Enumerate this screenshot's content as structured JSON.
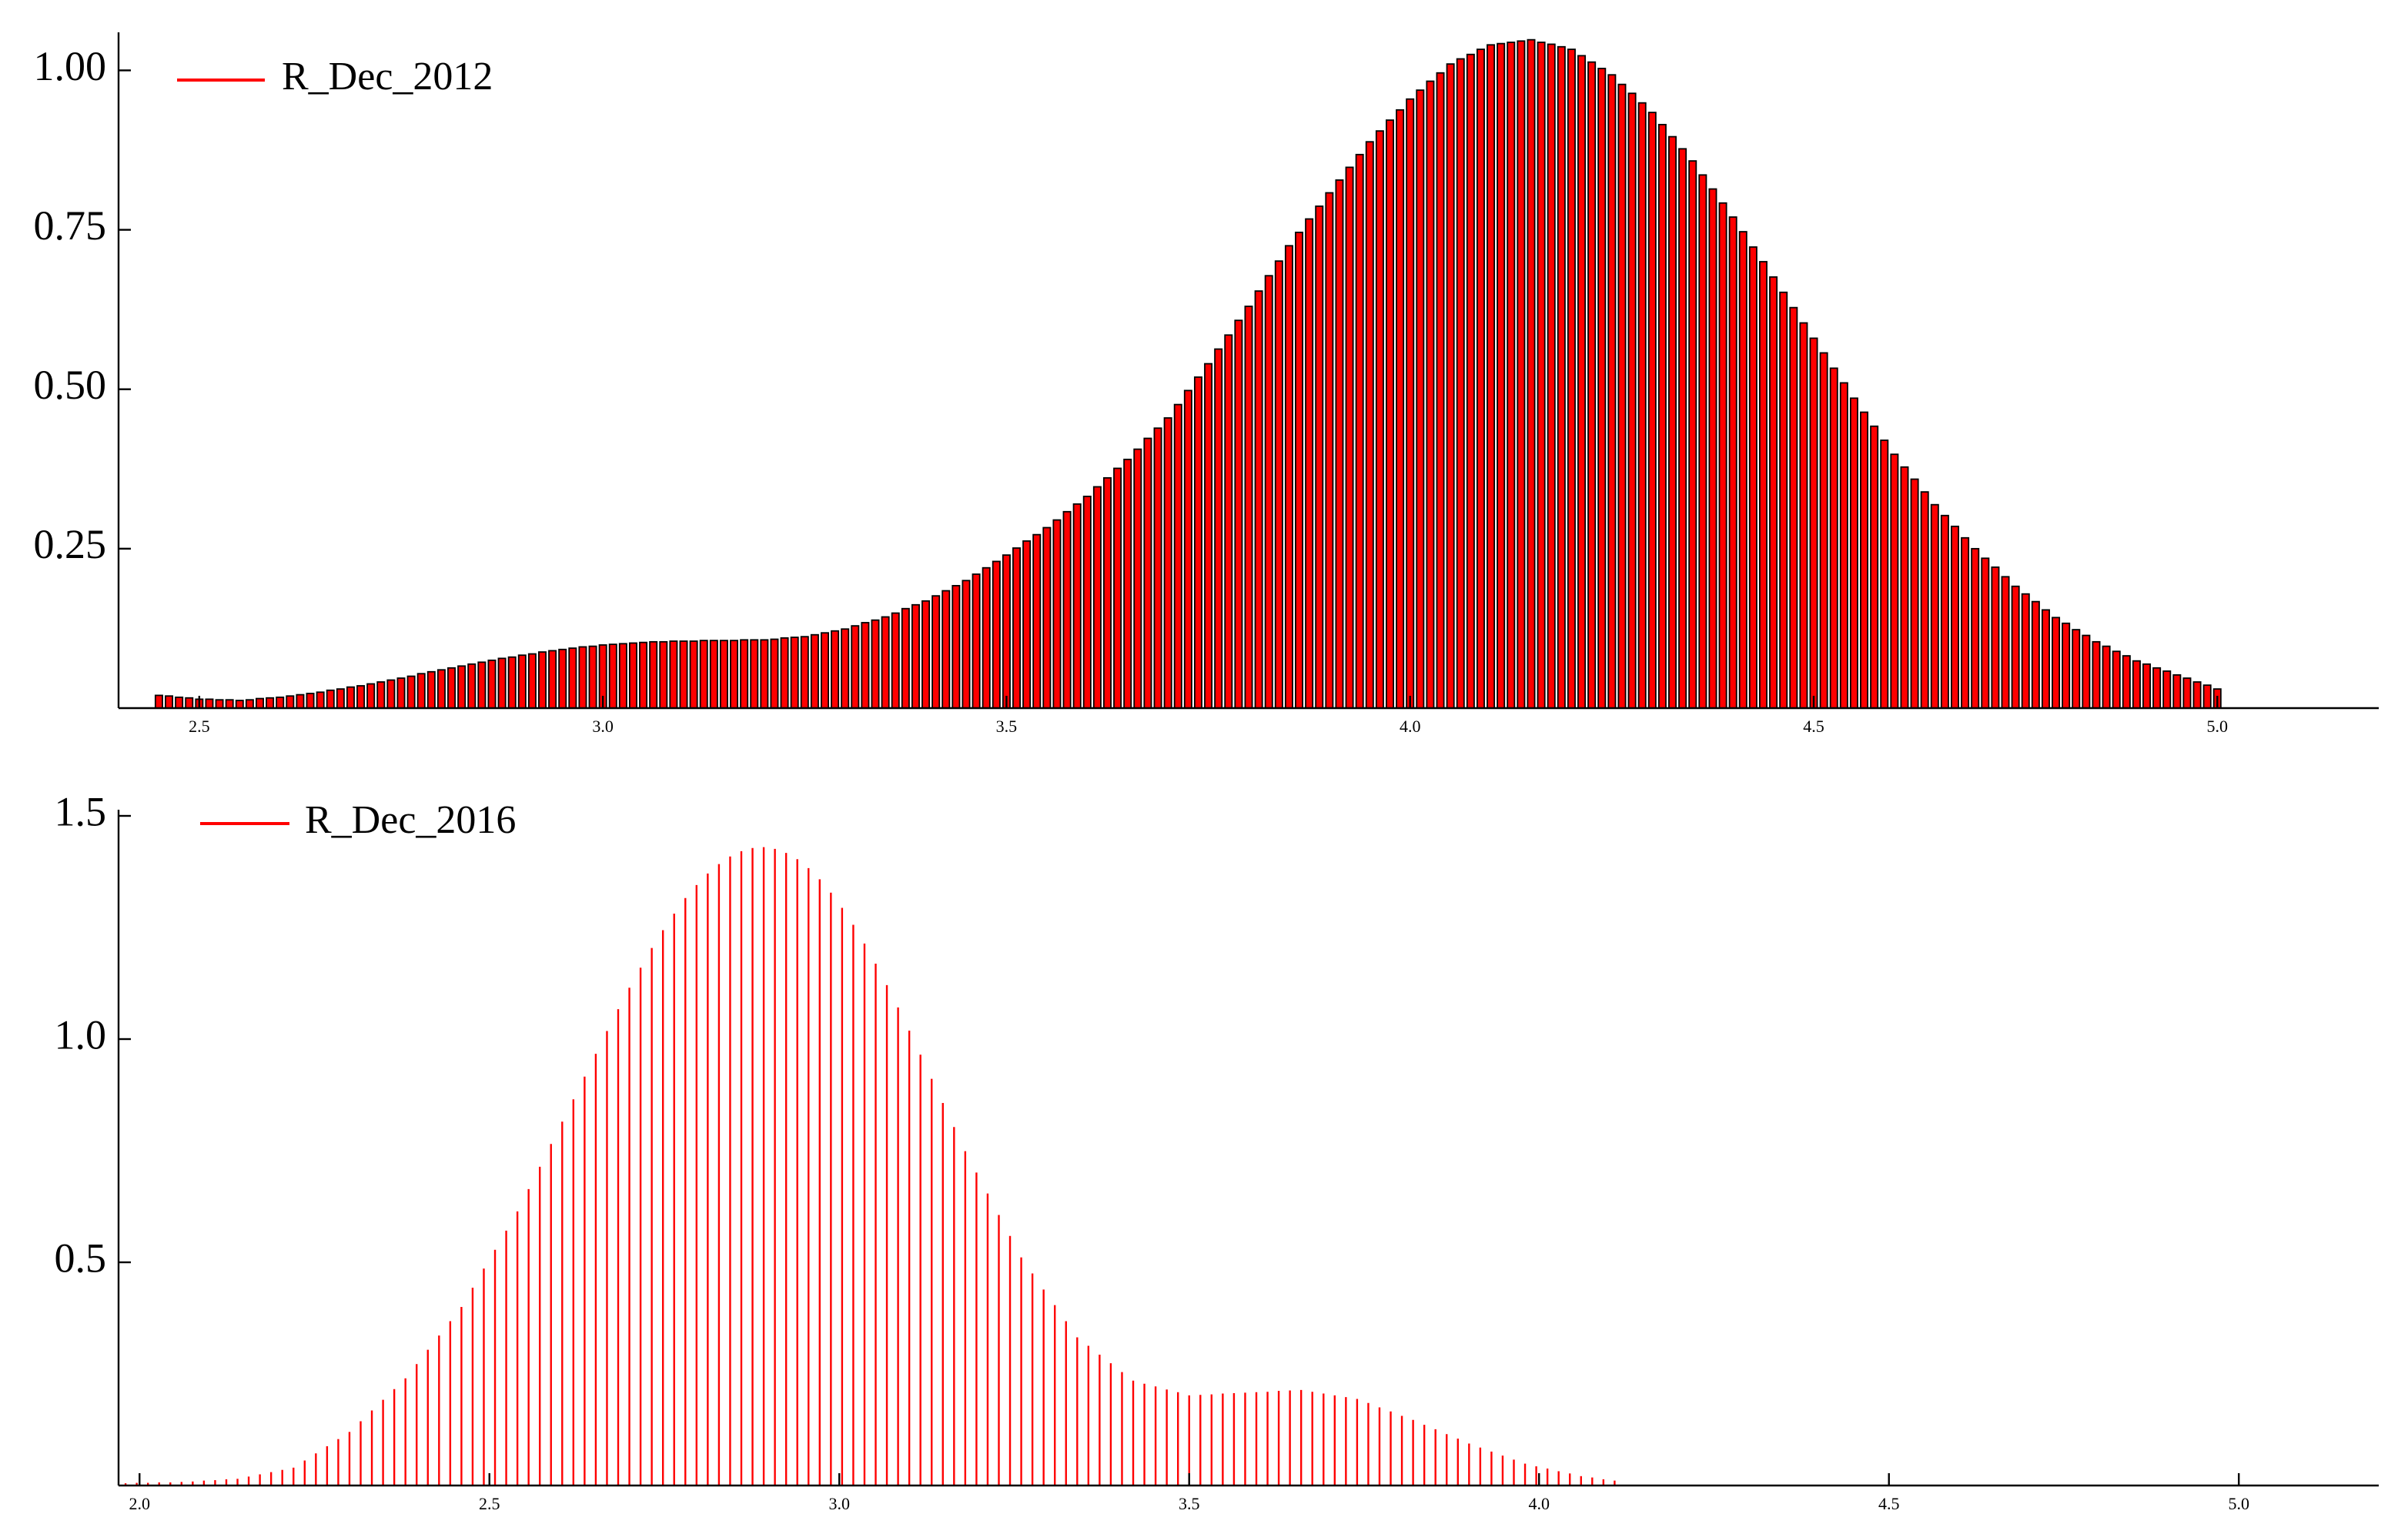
{
  "chart_data": [
    {
      "type": "bar",
      "x": [
        2.45,
        2.4625,
        2.475,
        2.4875,
        2.5,
        2.5125,
        2.525,
        2.5375,
        2.55,
        2.5625,
        2.575,
        2.5875,
        2.6,
        2.6125,
        2.625,
        2.6375,
        2.65,
        2.6625,
        2.675,
        2.6875,
        2.7,
        2.7125,
        2.725,
        2.7375,
        2.75,
        2.7625,
        2.775,
        2.7875,
        2.8,
        2.8125,
        2.825,
        2.8375,
        2.85,
        2.8625,
        2.875,
        2.8875,
        2.9,
        2.9125,
        2.925,
        2.9375,
        2.95,
        2.9625,
        2.975,
        2.9875,
        3.0,
        3.0125,
        3.025,
        3.0375,
        3.05,
        3.0625,
        3.075,
        3.0875,
        3.1,
        3.1125,
        3.125,
        3.1375,
        3.15,
        3.1625,
        3.175,
        3.1875,
        3.2,
        3.2125,
        3.225,
        3.2375,
        3.25,
        3.2625,
        3.275,
        3.2875,
        3.3,
        3.3125,
        3.325,
        3.3375,
        3.35,
        3.3625,
        3.375,
        3.3875,
        3.4,
        3.4125,
        3.425,
        3.4375,
        3.45,
        3.4625,
        3.475,
        3.4875,
        3.5,
        3.5125,
        3.525,
        3.5375,
        3.55,
        3.5625,
        3.575,
        3.5875,
        3.6,
        3.6125,
        3.625,
        3.6375,
        3.65,
        3.6625,
        3.675,
        3.6875,
        3.7,
        3.7125,
        3.725,
        3.7375,
        3.75,
        3.7625,
        3.775,
        3.7875,
        3.8,
        3.8125,
        3.825,
        3.8375,
        3.85,
        3.8625,
        3.875,
        3.8875,
        3.9,
        3.9125,
        3.925,
        3.9375,
        3.95,
        3.9625,
        3.975,
        3.9875,
        4.0,
        4.0125,
        4.025,
        4.0375,
        4.05,
        4.0625,
        4.075,
        4.0875,
        4.1,
        4.1125,
        4.125,
        4.1375,
        4.15,
        4.1625,
        4.175,
        4.1875,
        4.2,
        4.2125,
        4.225,
        4.2375,
        4.25,
        4.2625,
        4.275,
        4.2875,
        4.3,
        4.3125,
        4.325,
        4.3375,
        4.35,
        4.3625,
        4.375,
        4.3875,
        4.4,
        4.4125,
        4.425,
        4.4375,
        4.45,
        4.4625,
        4.475,
        4.4875,
        4.5,
        4.5125,
        4.525,
        4.5375,
        4.55,
        4.5625,
        4.575,
        4.5875,
        4.6,
        4.6125,
        4.625,
        4.6375,
        4.65,
        4.6625,
        4.675,
        4.6875,
        4.7,
        4.7125,
        4.725,
        4.7375,
        4.75,
        4.7625,
        4.775,
        4.7875,
        4.8,
        4.8125,
        4.825,
        4.8375,
        4.85,
        4.8625,
        4.875,
        4.8875,
        4.9,
        4.9125,
        4.925,
        4.9375,
        4.95,
        4.9625,
        4.975,
        4.9875,
        5.0
      ],
      "series": [
        {
          "name": "R_Dec_2012",
          "color": "#ff0000",
          "edgecolor": "#000000",
          "values": [
            0.02,
            0.019,
            0.017,
            0.016,
            0.014,
            0.014,
            0.013,
            0.013,
            0.012,
            0.013,
            0.015,
            0.016,
            0.017,
            0.019,
            0.021,
            0.023,
            0.025,
            0.028,
            0.03,
            0.033,
            0.035,
            0.038,
            0.041,
            0.044,
            0.047,
            0.05,
            0.054,
            0.057,
            0.06,
            0.063,
            0.066,
            0.069,
            0.072,
            0.075,
            0.078,
            0.08,
            0.083,
            0.085,
            0.088,
            0.09,
            0.092,
            0.094,
            0.096,
            0.097,
            0.099,
            0.1,
            0.101,
            0.102,
            0.103,
            0.104,
            0.104,
            0.105,
            0.105,
            0.105,
            0.106,
            0.106,
            0.106,
            0.106,
            0.107,
            0.107,
            0.107,
            0.108,
            0.11,
            0.111,
            0.112,
            0.115,
            0.118,
            0.121,
            0.124,
            0.129,
            0.134,
            0.138,
            0.143,
            0.149,
            0.156,
            0.162,
            0.168,
            0.176,
            0.184,
            0.192,
            0.2,
            0.21,
            0.22,
            0.23,
            0.24,
            0.251,
            0.262,
            0.272,
            0.283,
            0.295,
            0.308,
            0.32,
            0.332,
            0.347,
            0.361,
            0.376,
            0.39,
            0.406,
            0.423,
            0.439,
            0.455,
            0.476,
            0.498,
            0.519,
            0.54,
            0.563,
            0.585,
            0.608,
            0.63,
            0.654,
            0.678,
            0.701,
            0.725,
            0.746,
            0.767,
            0.787,
            0.808,
            0.828,
            0.848,
            0.868,
            0.888,
            0.905,
            0.922,
            0.938,
            0.955,
            0.969,
            0.983,
            0.996,
            1.01,
            1.018,
            1.025,
            1.033,
            1.04,
            1.042,
            1.044,
            1.046,
            1.048,
            1.044,
            1.041,
            1.037,
            1.033,
            1.023,
            1.013,
            1.003,
            0.993,
            0.978,
            0.964,
            0.949,
            0.934,
            0.915,
            0.896,
            0.877,
            0.858,
            0.836,
            0.814,
            0.792,
            0.77,
            0.747,
            0.723,
            0.7,
            0.676,
            0.652,
            0.628,
            0.604,
            0.58,
            0.557,
            0.533,
            0.51,
            0.486,
            0.464,
            0.442,
            0.42,
            0.398,
            0.378,
            0.359,
            0.339,
            0.319,
            0.302,
            0.285,
            0.267,
            0.25,
            0.235,
            0.221,
            0.206,
            0.191,
            0.179,
            0.167,
            0.154,
            0.142,
            0.133,
            0.123,
            0.114,
            0.104,
            0.097,
            0.089,
            0.082,
            0.074,
            0.069,
            0.063,
            0.058,
            0.052,
            0.047,
            0.041,
            0.036,
            0.03
          ]
        }
      ],
      "xlim": [
        2.4,
        5.2
      ],
      "xticks": [
        2.5,
        {
          "value": 3,
          "label": "3.0"
        },
        3.5,
        {
          "value": 4,
          "label": "4.0"
        },
        4.5,
        {
          "value": 5,
          "label": "5.0"
        }
      ],
      "ylim": [
        0,
        1.05
      ],
      "yticks": [
        0.25,
        {
          "value": 0.5,
          "label": "0.50"
        },
        0.75,
        {
          "value": 1,
          "label": "1.00"
        }
      ],
      "legend": "upper left"
    },
    {
      "type": "stem",
      "x": [
        1.98,
        1.996,
        2.012,
        2.028,
        2.044,
        2.06,
        2.076,
        2.092,
        2.108,
        2.124,
        2.14,
        2.156,
        2.172,
        2.188,
        2.204,
        2.22,
        2.236,
        2.252,
        2.268,
        2.284,
        2.3,
        2.316,
        2.332,
        2.348,
        2.364,
        2.38,
        2.396,
        2.412,
        2.428,
        2.444,
        2.46,
        2.476,
        2.492,
        2.508,
        2.524,
        2.54,
        2.556,
        2.572,
        2.588,
        2.604,
        2.62,
        2.636,
        2.652,
        2.668,
        2.684,
        2.7,
        2.716,
        2.732,
        2.748,
        2.764,
        2.78,
        2.796,
        2.812,
        2.828,
        2.844,
        2.86,
        2.876,
        2.892,
        2.908,
        2.924,
        2.94,
        2.956,
        2.972,
        2.988,
        3.004,
        3.02,
        3.036,
        3.052,
        3.068,
        3.084,
        3.1,
        3.116,
        3.132,
        3.148,
        3.164,
        3.18,
        3.196,
        3.212,
        3.228,
        3.244,
        3.26,
        3.276,
        3.292,
        3.308,
        3.324,
        3.34,
        3.356,
        3.372,
        3.388,
        3.404,
        3.42,
        3.436,
        3.452,
        3.468,
        3.484,
        3.5,
        3.516,
        3.532,
        3.548,
        3.564,
        3.58,
        3.596,
        3.612,
        3.628,
        3.644,
        3.66,
        3.676,
        3.692,
        3.708,
        3.724,
        3.74,
        3.756,
        3.772,
        3.788,
        3.804,
        3.82,
        3.836,
        3.852,
        3.868,
        3.884,
        3.9,
        3.916,
        3.932,
        3.948,
        3.964,
        3.98,
        3.996,
        4.012,
        4.028,
        4.044,
        4.06,
        4.076,
        4.092,
        4.108
      ],
      "series": [
        {
          "name": "R_Dec_2016",
          "color": "#ff0000",
          "values": [
            0.005,
            0.006,
            0.006,
            0.007,
            0.007,
            0.008,
            0.009,
            0.011,
            0.012,
            0.014,
            0.015,
            0.02,
            0.025,
            0.03,
            0.035,
            0.04,
            0.056,
            0.072,
            0.088,
            0.104,
            0.12,
            0.144,
            0.168,
            0.192,
            0.216,
            0.24,
            0.272,
            0.304,
            0.336,
            0.368,
            0.4,
            0.443,
            0.486,
            0.528,
            0.571,
            0.614,
            0.664,
            0.714,
            0.765,
            0.815,
            0.865,
            0.916,
            0.967,
            1.018,
            1.067,
            1.115,
            1.16,
            1.204,
            1.244,
            1.281,
            1.316,
            1.345,
            1.371,
            1.392,
            1.409,
            1.421,
            1.428,
            1.43,
            1.426,
            1.417,
            1.403,
            1.383,
            1.358,
            1.328,
            1.294,
            1.256,
            1.214,
            1.169,
            1.121,
            1.071,
            1.019,
            0.965,
            0.911,
            0.857,
            0.803,
            0.749,
            0.701,
            0.654,
            0.606,
            0.559,
            0.511,
            0.475,
            0.439,
            0.404,
            0.368,
            0.332,
            0.313,
            0.293,
            0.274,
            0.254,
            0.235,
            0.228,
            0.222,
            0.215,
            0.209,
            0.202,
            0.203,
            0.204,
            0.206,
            0.207,
            0.208,
            0.209,
            0.21,
            0.212,
            0.213,
            0.214,
            0.21,
            0.206,
            0.202,
            0.198,
            0.194,
            0.185,
            0.175,
            0.166,
            0.156,
            0.147,
            0.136,
            0.126,
            0.115,
            0.105,
            0.094,
            0.085,
            0.076,
            0.067,
            0.058,
            0.049,
            0.043,
            0.038,
            0.032,
            0.027,
            0.021,
            0.018,
            0.014,
            0.011
          ]
        }
      ],
      "xlim": [
        1.97,
        5.2
      ],
      "xticks": [
        {
          "value": 2,
          "label": "2.0"
        },
        2.5,
        {
          "value": 3,
          "label": "3.0"
        },
        3.5,
        {
          "value": 4,
          "label": "4.0"
        },
        4.5,
        {
          "value": 5,
          "label": "5.0"
        }
      ],
      "ylim": [
        0,
        1.5
      ],
      "yticks": [
        0.5,
        {
          "value": 1,
          "label": "1.0"
        },
        1.5
      ],
      "legend": "upper left"
    }
  ]
}
